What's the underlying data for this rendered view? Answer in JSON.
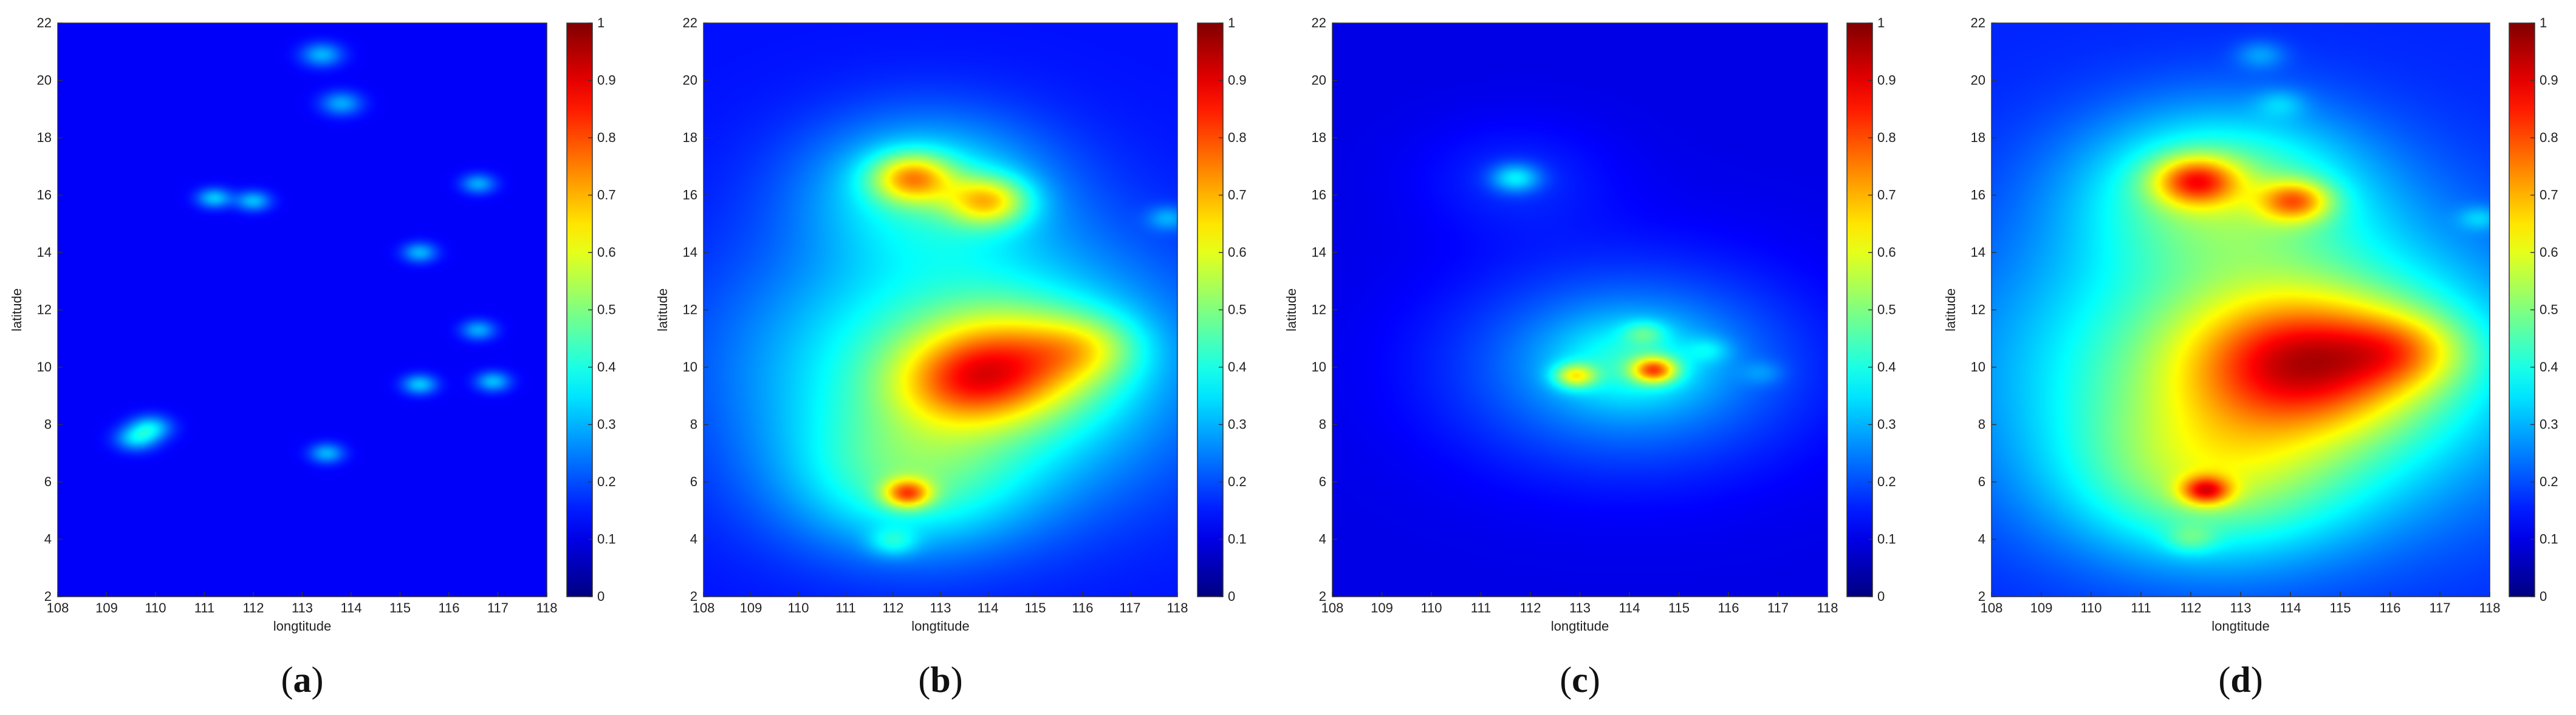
{
  "chart_data": [
    {
      "type": "heatmap",
      "caption": "a",
      "xlabel": "longtitude",
      "ylabel": "latitude",
      "xlim": [
        108,
        118
      ],
      "ylim": [
        2,
        22
      ],
      "xticks": [
        108,
        109,
        110,
        111,
        112,
        113,
        114,
        115,
        116,
        117,
        118
      ],
      "yticks": [
        2,
        4,
        6,
        8,
        10,
        12,
        14,
        16,
        18,
        20,
        22
      ],
      "colorbar": {
        "colormap": "jet",
        "range": [
          0,
          1
        ],
        "ticks": [
          0,
          0.1,
          0.2,
          0.3,
          0.4,
          0.5,
          0.6,
          0.7,
          0.8,
          0.9,
          1
        ]
      },
      "background_value": 0.12,
      "hotspots": [
        {
          "lon": 113.4,
          "lat": 20.9,
          "value": 0.18,
          "spread": 0.3
        },
        {
          "lon": 113.8,
          "lat": 19.2,
          "value": 0.17,
          "spread": 0.3
        },
        {
          "lon": 111.2,
          "lat": 15.9,
          "value": 0.2,
          "spread": 0.25
        },
        {
          "lon": 112.0,
          "lat": 15.8,
          "value": 0.19,
          "spread": 0.25
        },
        {
          "lon": 116.6,
          "lat": 16.4,
          "value": 0.17,
          "spread": 0.25
        },
        {
          "lon": 115.4,
          "lat": 14.0,
          "value": 0.18,
          "spread": 0.25
        },
        {
          "lon": 116.6,
          "lat": 11.3,
          "value": 0.17,
          "spread": 0.25
        },
        {
          "lon": 115.4,
          "lat": 9.4,
          "value": 0.2,
          "spread": 0.25
        },
        {
          "lon": 116.9,
          "lat": 9.5,
          "value": 0.19,
          "spread": 0.25
        },
        {
          "lon": 109.9,
          "lat": 7.9,
          "value": 0.21,
          "spread": 0.3
        },
        {
          "lon": 109.6,
          "lat": 7.5,
          "value": 0.2,
          "spread": 0.3
        },
        {
          "lon": 113.5,
          "lat": 7.0,
          "value": 0.18,
          "spread": 0.25
        }
      ]
    },
    {
      "type": "heatmap",
      "caption": "b",
      "xlabel": "longtitude",
      "ylabel": "latitude",
      "xlim": [
        108,
        118
      ],
      "ylim": [
        2,
        22
      ],
      "xticks": [
        108,
        109,
        110,
        111,
        112,
        113,
        114,
        115,
        116,
        117,
        118
      ],
      "yticks": [
        2,
        4,
        6,
        8,
        10,
        12,
        14,
        16,
        18,
        20,
        22
      ],
      "colorbar": {
        "colormap": "jet",
        "range": [
          0,
          1
        ],
        "ticks": [
          0,
          0.1,
          0.2,
          0.3,
          0.4,
          0.5,
          0.6,
          0.7,
          0.8,
          0.9,
          1
        ]
      },
      "background_value": 0.14,
      "hotspots": [
        {
          "lon": 113.5,
          "lat": 10.0,
          "value": 0.33,
          "spread": 3.2
        },
        {
          "lon": 112.7,
          "lat": 16.3,
          "value": 0.22,
          "spread": 1.8
        },
        {
          "lon": 112.3,
          "lat": 6.0,
          "value": 0.2,
          "spread": 1.8
        },
        {
          "lon": 114.5,
          "lat": 10.1,
          "value": 0.33,
          "spread": 1.3
        },
        {
          "lon": 113.4,
          "lat": 9.4,
          "value": 0.17,
          "spread": 1.0
        },
        {
          "lon": 116.1,
          "lat": 10.7,
          "value": 0.16,
          "spread": 0.8
        },
        {
          "lon": 112.4,
          "lat": 16.6,
          "value": 0.36,
          "spread": 0.6
        },
        {
          "lon": 114.0,
          "lat": 15.8,
          "value": 0.33,
          "spread": 0.6
        },
        {
          "lon": 112.3,
          "lat": 5.6,
          "value": 0.37,
          "spread": 0.35
        },
        {
          "lon": 112.0,
          "lat": 3.9,
          "value": 0.12,
          "spread": 0.35
        },
        {
          "lon": 117.8,
          "lat": 15.2,
          "value": 0.12,
          "spread": 0.3
        }
      ]
    },
    {
      "type": "heatmap",
      "caption": "c",
      "xlabel": "longtitude",
      "ylabel": "latitude",
      "xlim": [
        108,
        118
      ],
      "ylim": [
        2,
        22
      ],
      "xticks": [
        108,
        109,
        110,
        111,
        112,
        113,
        114,
        115,
        116,
        117,
        118
      ],
      "yticks": [
        2,
        4,
        6,
        8,
        10,
        12,
        14,
        16,
        18,
        20,
        22
      ],
      "colorbar": {
        "colormap": "jet",
        "range": [
          0,
          1
        ],
        "ticks": [
          0,
          0.1,
          0.2,
          0.3,
          0.4,
          0.5,
          0.6,
          0.7,
          0.8,
          0.9,
          1
        ]
      },
      "background_value": 0.1,
      "hotspots": [
        {
          "lon": 114.0,
          "lat": 10.0,
          "value": 0.2,
          "spread": 2.5
        },
        {
          "lon": 111.7,
          "lat": 16.6,
          "value": 0.06,
          "spread": 1.4
        },
        {
          "lon": 114.0,
          "lat": 10.2,
          "value": 0.12,
          "spread": 1.1
        },
        {
          "lon": 111.7,
          "lat": 16.6,
          "value": 0.2,
          "spread": 0.35
        },
        {
          "lon": 114.5,
          "lat": 9.9,
          "value": 0.42,
          "spread": 0.32
        },
        {
          "lon": 112.9,
          "lat": 9.7,
          "value": 0.3,
          "spread": 0.3
        },
        {
          "lon": 114.3,
          "lat": 11.2,
          "value": 0.12,
          "spread": 0.3
        },
        {
          "lon": 115.6,
          "lat": 10.6,
          "value": 0.08,
          "spread": 0.3
        },
        {
          "lon": 116.7,
          "lat": 9.8,
          "value": 0.06,
          "spread": 0.3
        }
      ]
    },
    {
      "type": "heatmap",
      "caption": "d",
      "xlabel": "longtitude",
      "ylabel": "latitude",
      "xlim": [
        108,
        118
      ],
      "ylim": [
        2,
        22
      ],
      "xticks": [
        108,
        109,
        110,
        111,
        112,
        113,
        114,
        115,
        116,
        117,
        118
      ],
      "yticks": [
        2,
        4,
        6,
        8,
        10,
        12,
        14,
        16,
        18,
        20,
        22
      ],
      "colorbar": {
        "colormap": "jet",
        "range": [
          0,
          1
        ],
        "ticks": [
          0,
          0.1,
          0.2,
          0.3,
          0.4,
          0.5,
          0.6,
          0.7,
          0.8,
          0.9,
          1
        ]
      },
      "background_value": 0.16,
      "hotspots": [
        {
          "lon": 113.5,
          "lat": 10.0,
          "value": 0.38,
          "spread": 3.6
        },
        {
          "lon": 112.6,
          "lat": 16.3,
          "value": 0.28,
          "spread": 2.0
        },
        {
          "lon": 112.3,
          "lat": 6.0,
          "value": 0.22,
          "spread": 2.0
        },
        {
          "lon": 114.4,
          "lat": 10.2,
          "value": 0.4,
          "spread": 1.6
        },
        {
          "lon": 116.3,
          "lat": 10.6,
          "value": 0.18,
          "spread": 0.9
        },
        {
          "lon": 112.1,
          "lat": 16.5,
          "value": 0.38,
          "spread": 0.6
        },
        {
          "lon": 114.1,
          "lat": 15.8,
          "value": 0.33,
          "spread": 0.5
        },
        {
          "lon": 112.3,
          "lat": 5.7,
          "value": 0.36,
          "spread": 0.35
        },
        {
          "lon": 113.4,
          "lat": 20.9,
          "value": 0.1,
          "spread": 0.35
        },
        {
          "lon": 113.8,
          "lat": 19.2,
          "value": 0.08,
          "spread": 0.35
        },
        {
          "lon": 117.8,
          "lat": 15.2,
          "value": 0.1,
          "spread": 0.3
        },
        {
          "lon": 112.0,
          "lat": 4.0,
          "value": 0.1,
          "spread": 0.35
        }
      ]
    }
  ]
}
